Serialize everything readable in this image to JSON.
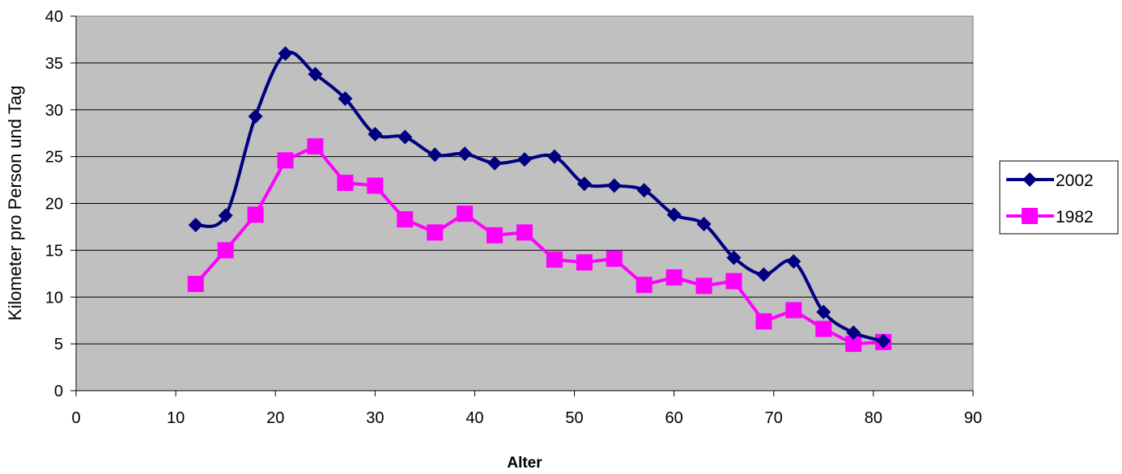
{
  "chart_data": {
    "type": "line",
    "title": "",
    "xlabel": "Alter",
    "ylabel": "Kilometer pro Person und Tag",
    "xlim": [
      0,
      90
    ],
    "ylim": [
      0,
      40
    ],
    "xticks": [
      0,
      10,
      20,
      30,
      40,
      50,
      60,
      70,
      80,
      90
    ],
    "yticks": [
      0,
      5,
      10,
      15,
      20,
      25,
      30,
      35,
      40
    ],
    "grid": "horizontal",
    "plot_background": "#c0c0c0",
    "legend_position": "right",
    "series": [
      {
        "name": "2002",
        "color": "#000080",
        "marker": "diamond",
        "smooth": true,
        "x": [
          12,
          15,
          18,
          21,
          24,
          27,
          30,
          33,
          36,
          39,
          42,
          45,
          48,
          51,
          54,
          57,
          60,
          63,
          66,
          69,
          72,
          75,
          78,
          81
        ],
        "y": [
          17.7,
          18.7,
          29.3,
          36.0,
          33.8,
          31.2,
          27.4,
          27.1,
          25.2,
          25.3,
          24.3,
          24.7,
          25.0,
          22.1,
          21.9,
          21.4,
          18.8,
          17.8,
          14.2,
          12.4,
          13.8,
          8.4,
          6.2,
          5.3
        ]
      },
      {
        "name": "1982",
        "color": "#ff00ff",
        "marker": "square",
        "smooth": false,
        "x": [
          12,
          15,
          18,
          21,
          24,
          27,
          30,
          33,
          36,
          39,
          42,
          45,
          48,
          51,
          54,
          57,
          60,
          63,
          66,
          69,
          72,
          75,
          78,
          81
        ],
        "y": [
          11.4,
          15.0,
          18.8,
          24.6,
          26.1,
          22.2,
          21.9,
          18.3,
          16.9,
          18.9,
          16.6,
          16.9,
          14.0,
          13.7,
          14.1,
          11.3,
          12.1,
          11.2,
          11.7,
          7.4,
          8.6,
          6.6,
          5.0,
          5.2
        ]
      }
    ]
  }
}
